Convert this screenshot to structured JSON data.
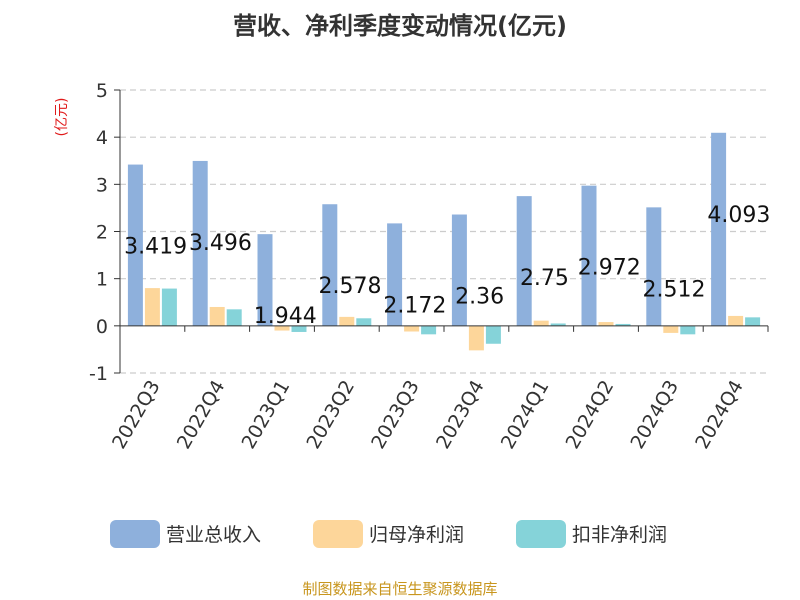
{
  "colors": {
    "series": [
      "#8eb0dc",
      "#fdd69a",
      "#85d3d9"
    ],
    "unit_label": "#e01a1a",
    "source_text": "#c8961e",
    "axis": "#333333",
    "grid": "#cccccc"
  },
  "chart_data": {
    "type": "bar",
    "title": "营收、净利季度变动情况(亿元)",
    "ylabel": "(亿元)",
    "ylim": [
      -1,
      5
    ],
    "yticks": [
      -1,
      0,
      1,
      2,
      3,
      4,
      5
    ],
    "grid": true,
    "legend_position": "bottom",
    "categories": [
      "2022Q3",
      "2022Q4",
      "2023Q1",
      "2023Q2",
      "2023Q3",
      "2023Q4",
      "2024Q1",
      "2024Q2",
      "2024Q3",
      "2024Q4"
    ],
    "series": [
      {
        "name": "营业总收入",
        "values": [
          3.419,
          3.496,
          1.944,
          2.578,
          2.172,
          2.36,
          2.75,
          2.972,
          2.512,
          4.093
        ]
      },
      {
        "name": "归母净利润",
        "values": [
          0.8,
          0.4,
          -0.1,
          0.19,
          -0.12,
          -0.52,
          0.11,
          0.08,
          -0.15,
          0.21
        ]
      },
      {
        "name": "扣非净利润",
        "values": [
          0.79,
          0.35,
          -0.13,
          0.16,
          -0.18,
          -0.38,
          0.05,
          0.04,
          -0.18,
          0.18
        ]
      }
    ],
    "data_labels": [
      "3.419",
      "3.496",
      "1.944",
      "2.578",
      "2.172",
      "2.36",
      "2.75",
      "2.972",
      "2.512",
      "4.093"
    ]
  },
  "source": "制图数据来自恒生聚源数据库"
}
